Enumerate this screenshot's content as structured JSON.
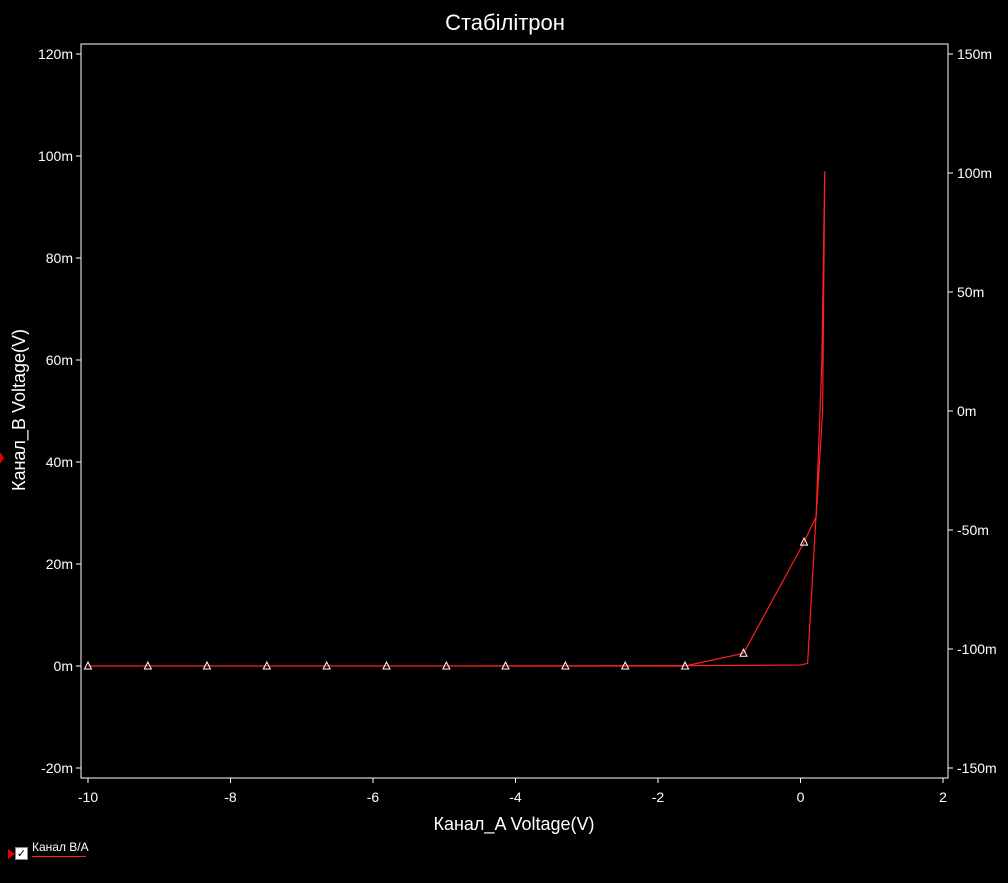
{
  "chart_data": {
    "type": "line",
    "title": "Стабілітрон",
    "xlabel": "Канал_A Voltage(V)",
    "ylabel": "Канал_B Voltage(V)",
    "xlim": [
      -10,
      2
    ],
    "ylim": [
      -0.02,
      0.12
    ],
    "y2lim": [
      -0.15,
      0.15
    ],
    "x_ticks": [
      "-10",
      "-8",
      "-6",
      "-4",
      "-2",
      "0",
      "2"
    ],
    "y_ticks": [
      "-20m",
      "0m",
      "20m",
      "40m",
      "60m",
      "80m",
      "100m",
      "120m"
    ],
    "y2_ticks": [
      "-150m",
      "-100m",
      "-50m",
      "0m",
      "50m",
      "100m",
      "150m"
    ],
    "grid": false,
    "series": [
      {
        "name": "Канал B/A",
        "color": "#ff2020",
        "x": [
          -10,
          -9.16,
          -8.33,
          -7.49,
          -6.65,
          -5.81,
          -4.97,
          -4.14,
          -3.3,
          -2.46,
          -1.62,
          -0.8,
          0.05,
          0.22,
          0.31,
          0.33,
          0.34,
          0.3,
          0.22,
          0.1,
          0.0,
          -1.0,
          -5.0,
          -10
        ],
        "y": [
          0,
          0,
          0,
          0,
          0,
          0,
          0,
          0,
          0,
          0,
          0,
          0.0025,
          0.0243,
          0.0293,
          0.05,
          0.08,
          0.097,
          0.06,
          0.03,
          0.0005,
          0.0002,
          0.0001,
          0,
          0
        ]
      }
    ],
    "markers": {
      "shape": "triangle",
      "x": [
        -10,
        -9.16,
        -8.33,
        -7.49,
        -6.65,
        -5.81,
        -4.97,
        -4.14,
        -3.3,
        -2.46,
        -1.62,
        -0.8,
        0.05
      ],
      "y": [
        0,
        0,
        0,
        0,
        0,
        0,
        0,
        0,
        0,
        0,
        0,
        0.0025,
        0.0243
      ]
    }
  },
  "legend": {
    "label": "Канал B/A",
    "checked": true,
    "check_glyph": "✓"
  }
}
